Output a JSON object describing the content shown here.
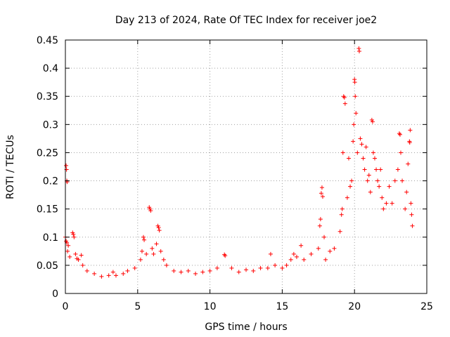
{
  "chart_data": {
    "type": "scatter",
    "title": "Day 213 of 2024, Rate Of TEC Index for receiver joe2",
    "xlabel": "GPS time / hours",
    "ylabel": "ROTI / TECUs",
    "xlim": [
      0,
      25
    ],
    "ylim": [
      0,
      0.45
    ],
    "x_ticks": [
      "0",
      "5",
      "10",
      "15",
      "20",
      "25"
    ],
    "y_ticks": [
      "0",
      "0.05",
      "0.1",
      "0.15",
      "0.2",
      "0.25",
      "0.3",
      "0.35",
      "0.4",
      "0.45"
    ],
    "grid": true,
    "marker": "+",
    "color": "#ff0000",
    "series": [
      {
        "name": "ROTI",
        "points": [
          [
            0.05,
            0.227
          ],
          [
            0.08,
            0.22
          ],
          [
            0.1,
            0.2
          ],
          [
            0.12,
            0.198
          ],
          [
            0.0,
            0.1
          ],
          [
            0.05,
            0.093
          ],
          [
            0.1,
            0.09
          ],
          [
            0.2,
            0.085
          ],
          [
            0.15,
            0.075
          ],
          [
            0.3,
            0.065
          ],
          [
            0.5,
            0.108
          ],
          [
            0.55,
            0.105
          ],
          [
            0.6,
            0.1
          ],
          [
            0.7,
            0.07
          ],
          [
            0.8,
            0.062
          ],
          [
            0.9,
            0.06
          ],
          [
            1.1,
            0.068
          ],
          [
            1.2,
            0.05
          ],
          [
            1.5,
            0.04
          ],
          [
            2.0,
            0.035
          ],
          [
            2.5,
            0.03
          ],
          [
            3.0,
            0.032
          ],
          [
            3.3,
            0.038
          ],
          [
            3.5,
            0.032
          ],
          [
            4.0,
            0.035
          ],
          [
            4.3,
            0.04
          ],
          [
            4.8,
            0.045
          ],
          [
            5.2,
            0.06
          ],
          [
            5.3,
            0.075
          ],
          [
            5.4,
            0.1
          ],
          [
            5.45,
            0.095
          ],
          [
            5.6,
            0.07
          ],
          [
            5.8,
            0.153
          ],
          [
            5.85,
            0.15
          ],
          [
            5.9,
            0.147
          ],
          [
            6.0,
            0.08
          ],
          [
            6.1,
            0.07
          ],
          [
            6.3,
            0.088
          ],
          [
            6.4,
            0.12
          ],
          [
            6.45,
            0.117
          ],
          [
            6.5,
            0.112
          ],
          [
            6.6,
            0.075
          ],
          [
            6.8,
            0.06
          ],
          [
            7.0,
            0.05
          ],
          [
            7.5,
            0.04
          ],
          [
            8.0,
            0.038
          ],
          [
            8.5,
            0.04
          ],
          [
            9.0,
            0.035
          ],
          [
            9.5,
            0.038
          ],
          [
            10.0,
            0.04
          ],
          [
            10.5,
            0.045
          ],
          [
            11.0,
            0.069
          ],
          [
            11.05,
            0.067
          ],
          [
            11.5,
            0.045
          ],
          [
            12.0,
            0.038
          ],
          [
            12.5,
            0.042
          ],
          [
            13.0,
            0.04
          ],
          [
            13.5,
            0.045
          ],
          [
            14.0,
            0.045
          ],
          [
            14.2,
            0.07
          ],
          [
            14.5,
            0.05
          ],
          [
            15.0,
            0.045
          ],
          [
            15.3,
            0.05
          ],
          [
            15.6,
            0.06
          ],
          [
            15.8,
            0.07
          ],
          [
            16.0,
            0.065
          ],
          [
            16.3,
            0.085
          ],
          [
            16.5,
            0.06
          ],
          [
            17.0,
            0.07
          ],
          [
            17.5,
            0.08
          ],
          [
            17.6,
            0.12
          ],
          [
            17.65,
            0.132
          ],
          [
            17.7,
            0.178
          ],
          [
            17.75,
            0.188
          ],
          [
            17.8,
            0.172
          ],
          [
            17.9,
            0.1
          ],
          [
            18.0,
            0.06
          ],
          [
            18.3,
            0.075
          ],
          [
            18.6,
            0.08
          ],
          [
            19.0,
            0.11
          ],
          [
            19.1,
            0.14
          ],
          [
            19.15,
            0.15
          ],
          [
            19.2,
            0.25
          ],
          [
            19.25,
            0.35
          ],
          [
            19.3,
            0.348
          ],
          [
            19.35,
            0.337
          ],
          [
            19.5,
            0.17
          ],
          [
            19.6,
            0.24
          ],
          [
            19.7,
            0.19
          ],
          [
            19.8,
            0.2
          ],
          [
            19.9,
            0.27
          ],
          [
            19.95,
            0.3
          ],
          [
            20.0,
            0.38
          ],
          [
            20.02,
            0.375
          ],
          [
            20.05,
            0.35
          ],
          [
            20.1,
            0.32
          ],
          [
            20.2,
            0.25
          ],
          [
            20.3,
            0.435
          ],
          [
            20.33,
            0.43
          ],
          [
            20.4,
            0.275
          ],
          [
            20.5,
            0.265
          ],
          [
            20.6,
            0.24
          ],
          [
            20.7,
            0.22
          ],
          [
            20.8,
            0.26
          ],
          [
            20.9,
            0.2
          ],
          [
            21.0,
            0.21
          ],
          [
            21.1,
            0.18
          ],
          [
            21.2,
            0.308
          ],
          [
            21.25,
            0.305
          ],
          [
            21.3,
            0.25
          ],
          [
            21.4,
            0.24
          ],
          [
            21.5,
            0.22
          ],
          [
            21.6,
            0.2
          ],
          [
            21.7,
            0.19
          ],
          [
            21.8,
            0.22
          ],
          [
            21.9,
            0.17
          ],
          [
            22.0,
            0.15
          ],
          [
            22.2,
            0.16
          ],
          [
            22.4,
            0.19
          ],
          [
            22.6,
            0.16
          ],
          [
            22.8,
            0.2
          ],
          [
            23.0,
            0.22
          ],
          [
            23.1,
            0.284
          ],
          [
            23.15,
            0.282
          ],
          [
            23.2,
            0.25
          ],
          [
            23.3,
            0.2
          ],
          [
            23.5,
            0.15
          ],
          [
            23.6,
            0.18
          ],
          [
            23.7,
            0.23
          ],
          [
            23.8,
            0.27
          ],
          [
            23.82,
            0.268
          ],
          [
            23.85,
            0.29
          ],
          [
            23.9,
            0.16
          ],
          [
            23.95,
            0.14
          ],
          [
            24.0,
            0.12
          ]
        ]
      }
    ]
  }
}
